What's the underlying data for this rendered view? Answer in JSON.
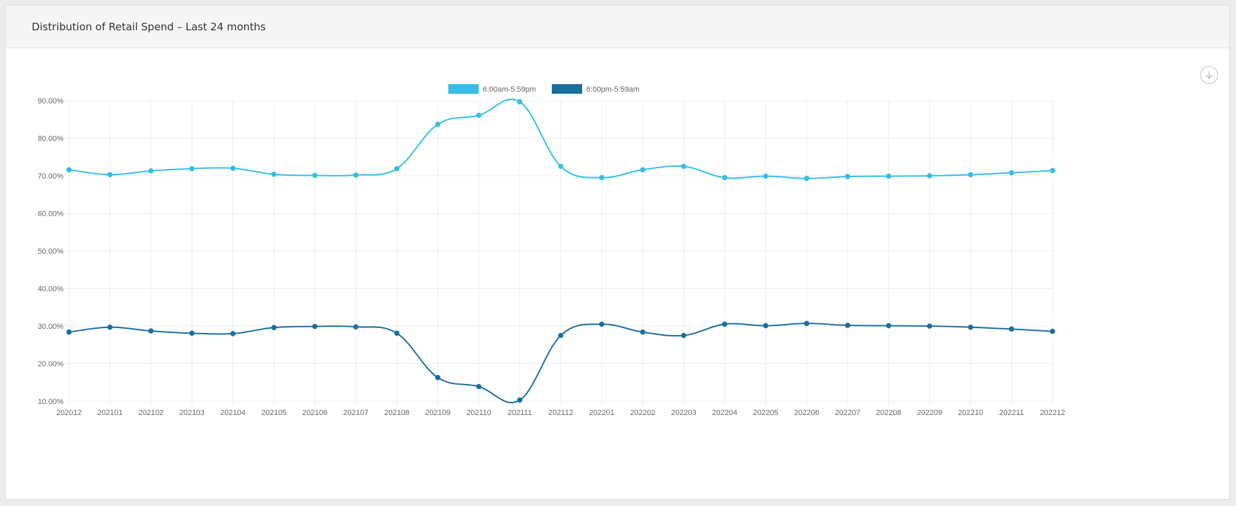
{
  "panel": {
    "title": "Distribution of Retail Spend – Last 24 months",
    "download_icon": "download-circle-icon"
  },
  "chart_data": {
    "type": "line",
    "title": "",
    "xlabel": "",
    "ylabel": "",
    "categories": [
      "202012",
      "202101",
      "202102",
      "202103",
      "202104",
      "202105",
      "202106",
      "202107",
      "202108",
      "202109",
      "202110",
      "202111",
      "202112",
      "202201",
      "202202",
      "202203",
      "202204",
      "202205",
      "202206",
      "202207",
      "202208",
      "202209",
      "202210",
      "202211",
      "202212"
    ],
    "ylim": [
      10,
      90
    ],
    "yticks": [
      10,
      20,
      30,
      40,
      50,
      60,
      70,
      80,
      90
    ],
    "ytick_labels": [
      "10.00%",
      "20.00%",
      "30.00%",
      "40.00%",
      "50.00%",
      "60.00%",
      "70.00%",
      "80.00%",
      "90.00%"
    ],
    "grid": true,
    "legend_position": "top-center",
    "series": [
      {
        "name": "6:00am-5:59pm",
        "color": "#33bfe6",
        "values": [
          71.6,
          70.3,
          71.3,
          71.9,
          72.0,
          70.4,
          70.1,
          70.2,
          71.9,
          83.7,
          86.1,
          89.7,
          72.5,
          69.5,
          71.6,
          72.5,
          69.5,
          69.9,
          69.3,
          69.8,
          69.9,
          70.0,
          70.3,
          70.8,
          71.4
        ]
      },
      {
        "name": "6:00pm-5:59am",
        "color": "#1a6f9e",
        "values": [
          28.4,
          29.7,
          28.7,
          28.1,
          28.0,
          29.6,
          29.9,
          29.8,
          28.1,
          16.3,
          13.9,
          10.3,
          27.5,
          30.5,
          28.4,
          27.5,
          30.5,
          30.1,
          30.7,
          30.2,
          30.1,
          30.0,
          29.7,
          29.2,
          28.6
        ]
      }
    ]
  }
}
